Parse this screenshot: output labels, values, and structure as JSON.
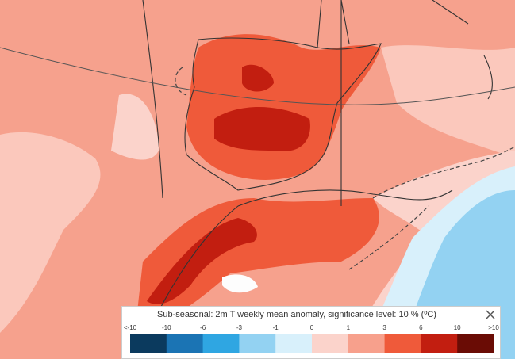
{
  "legend": {
    "title": "Sub-seasonal: 2m T weekly mean anomaly, significance level: 10 % (ºC)",
    "labels": [
      "<-10",
      "-10",
      "-6",
      "-3",
      "-1",
      "0",
      "1",
      "3",
      "6",
      "10",
      ">10"
    ],
    "colors": [
      "#0b3a5e",
      "#1b74b4",
      "#2fa6e2",
      "#93d2f2",
      "#d8f0fb",
      "#fbd3cb",
      "#f7a08c",
      "#ef5a3a",
      "#c21e10",
      "#6a0c05"
    ]
  }
}
